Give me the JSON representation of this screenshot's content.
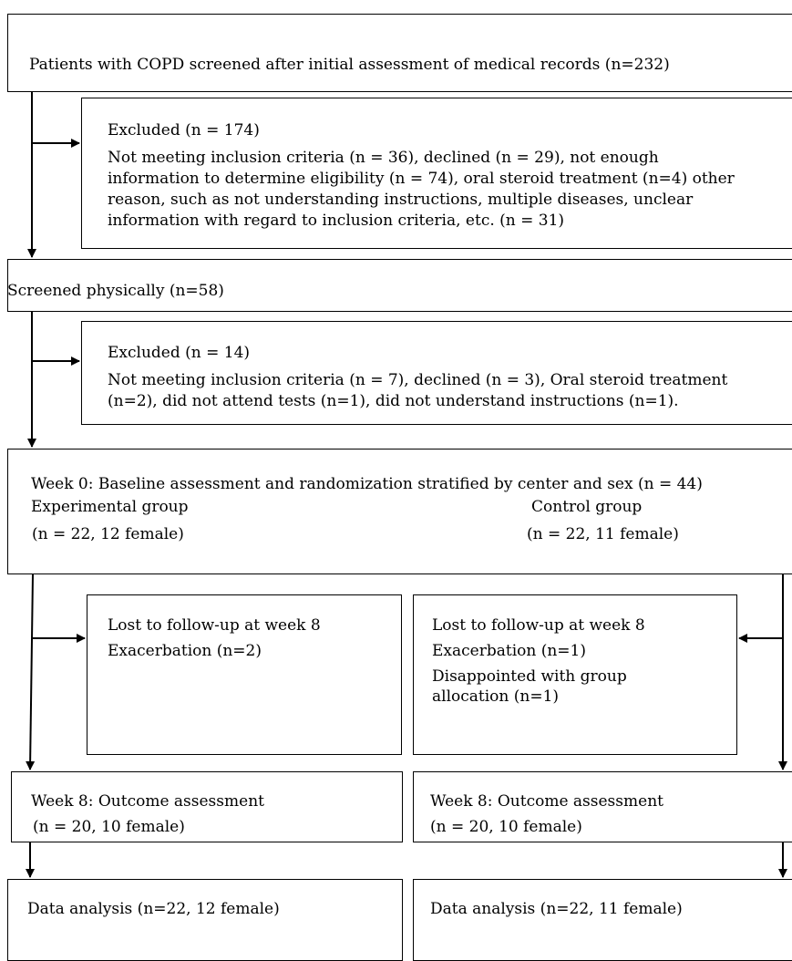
{
  "screened_initial": {
    "text": "Patients with COPD screened after initial assessment of medical records (n=232)"
  },
  "excluded_1": {
    "title": "Excluded (n = 174)",
    "lines": [
      "Not meeting inclusion criteria (n = 36), declined (n = 29), not enough",
      "information to determine eligibility (n = 74), oral steroid treatment (n=4) other",
      "reason, such as not understanding instructions, multiple diseases, unclear",
      "information with regard to inclusion criteria, etc. (n = 31)"
    ]
  },
  "screened_physically": {
    "text": "Screened physically (n=58)"
  },
  "excluded_2": {
    "title": "Excluded (n = 14)",
    "lines": [
      "Not meeting inclusion criteria (n = 7), declined (n = 3), Oral steroid treatment",
      "(n=2), did not attend tests (n=1), did not understand instructions (n=1)."
    ]
  },
  "baseline": {
    "text": "Week 0: Baseline assessment and randomization stratified by center and sex (n = 44)",
    "experimental_label": "Experimental group",
    "experimental_n": "(n = 22, 12 female)",
    "control_label": "Control group",
    "control_n": "(n = 22, 11 female)"
  },
  "lost_experimental": {
    "title": "Lost to follow-up at week 8",
    "line1": "Exacerbation (n=2)"
  },
  "lost_control": {
    "title": "Lost to follow-up at week 8",
    "line1": "Exacerbation (n=1)",
    "line2": "Disappointed with group",
    "line3": "allocation (n=1)"
  },
  "outcome_experimental": {
    "title": "Week 8: Outcome assessment",
    "n": "(n = 20, 10 female)"
  },
  "outcome_control": {
    "title": "Week 8: Outcome assessment",
    "n": "(n = 20, 10 female)"
  },
  "analysis_experimental": {
    "text": "Data analysis (n=22, 12 female)"
  },
  "analysis_control": {
    "text": "Data analysis (n=22, 11 female)"
  }
}
